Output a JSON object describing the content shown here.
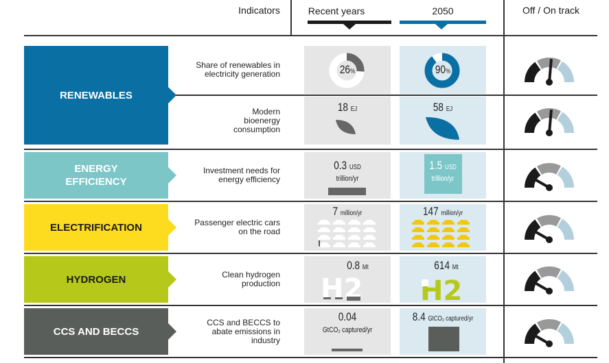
{
  "header": {
    "indicators": "Indicators",
    "recent": "Recent years",
    "future": "2050",
    "track": "Off / On track"
  },
  "colors": {
    "renewables": "#0a6fa3",
    "efficiency": "#7cc6c8",
    "electrification": "#fddc1f",
    "hydrogen": "#b6c91a",
    "ccs": "#5a5e5a"
  },
  "rows": [
    {
      "category": "RENEWABLES",
      "indicator": "Share of renewables in electricity generation",
      "recent": {
        "value": "26",
        "unit": "%",
        "share": 0.26
      },
      "future": {
        "value": "90",
        "unit": "%",
        "share": 0.9
      },
      "status": "near on track"
    },
    {
      "indicator": "Modern bioenergy consumption",
      "recent": {
        "value": "18",
        "unit": "EJ"
      },
      "future": {
        "value": "58",
        "unit": "EJ"
      },
      "status": "near on track"
    },
    {
      "category": "ENERGY EFFICIENCY",
      "indicator": "Investment needs for energy efficiency",
      "recent": {
        "value": "0.3",
        "unit": "USD",
        "sub": "trillion/yr"
      },
      "future": {
        "value": "1.5",
        "unit": "USD",
        "sub": "trillion/yr"
      },
      "status": "off track"
    },
    {
      "category": "ELECTRIFICATION",
      "indicator": "Passenger electric cars on the road",
      "recent": {
        "value": "7",
        "unit": "million/yr"
      },
      "future": {
        "value": "147",
        "unit": "million/yr"
      },
      "status": "off track"
    },
    {
      "category": "HYDROGEN",
      "indicator": "Clean hydrogen production",
      "recent": {
        "value": "0.8",
        "unit": "Mt"
      },
      "future": {
        "value": "614",
        "unit": "Mt"
      },
      "status": "off track"
    },
    {
      "category": "CCS AND BECCS",
      "indicator": "CCS and BECCS to abate emissions in industry",
      "recent": {
        "value": "0.04",
        "unit": "GtCO₂ captured/yr"
      },
      "future": {
        "value": "8.4",
        "unit": "GtCO₂ captured/yr"
      },
      "status": "off track"
    }
  ]
}
